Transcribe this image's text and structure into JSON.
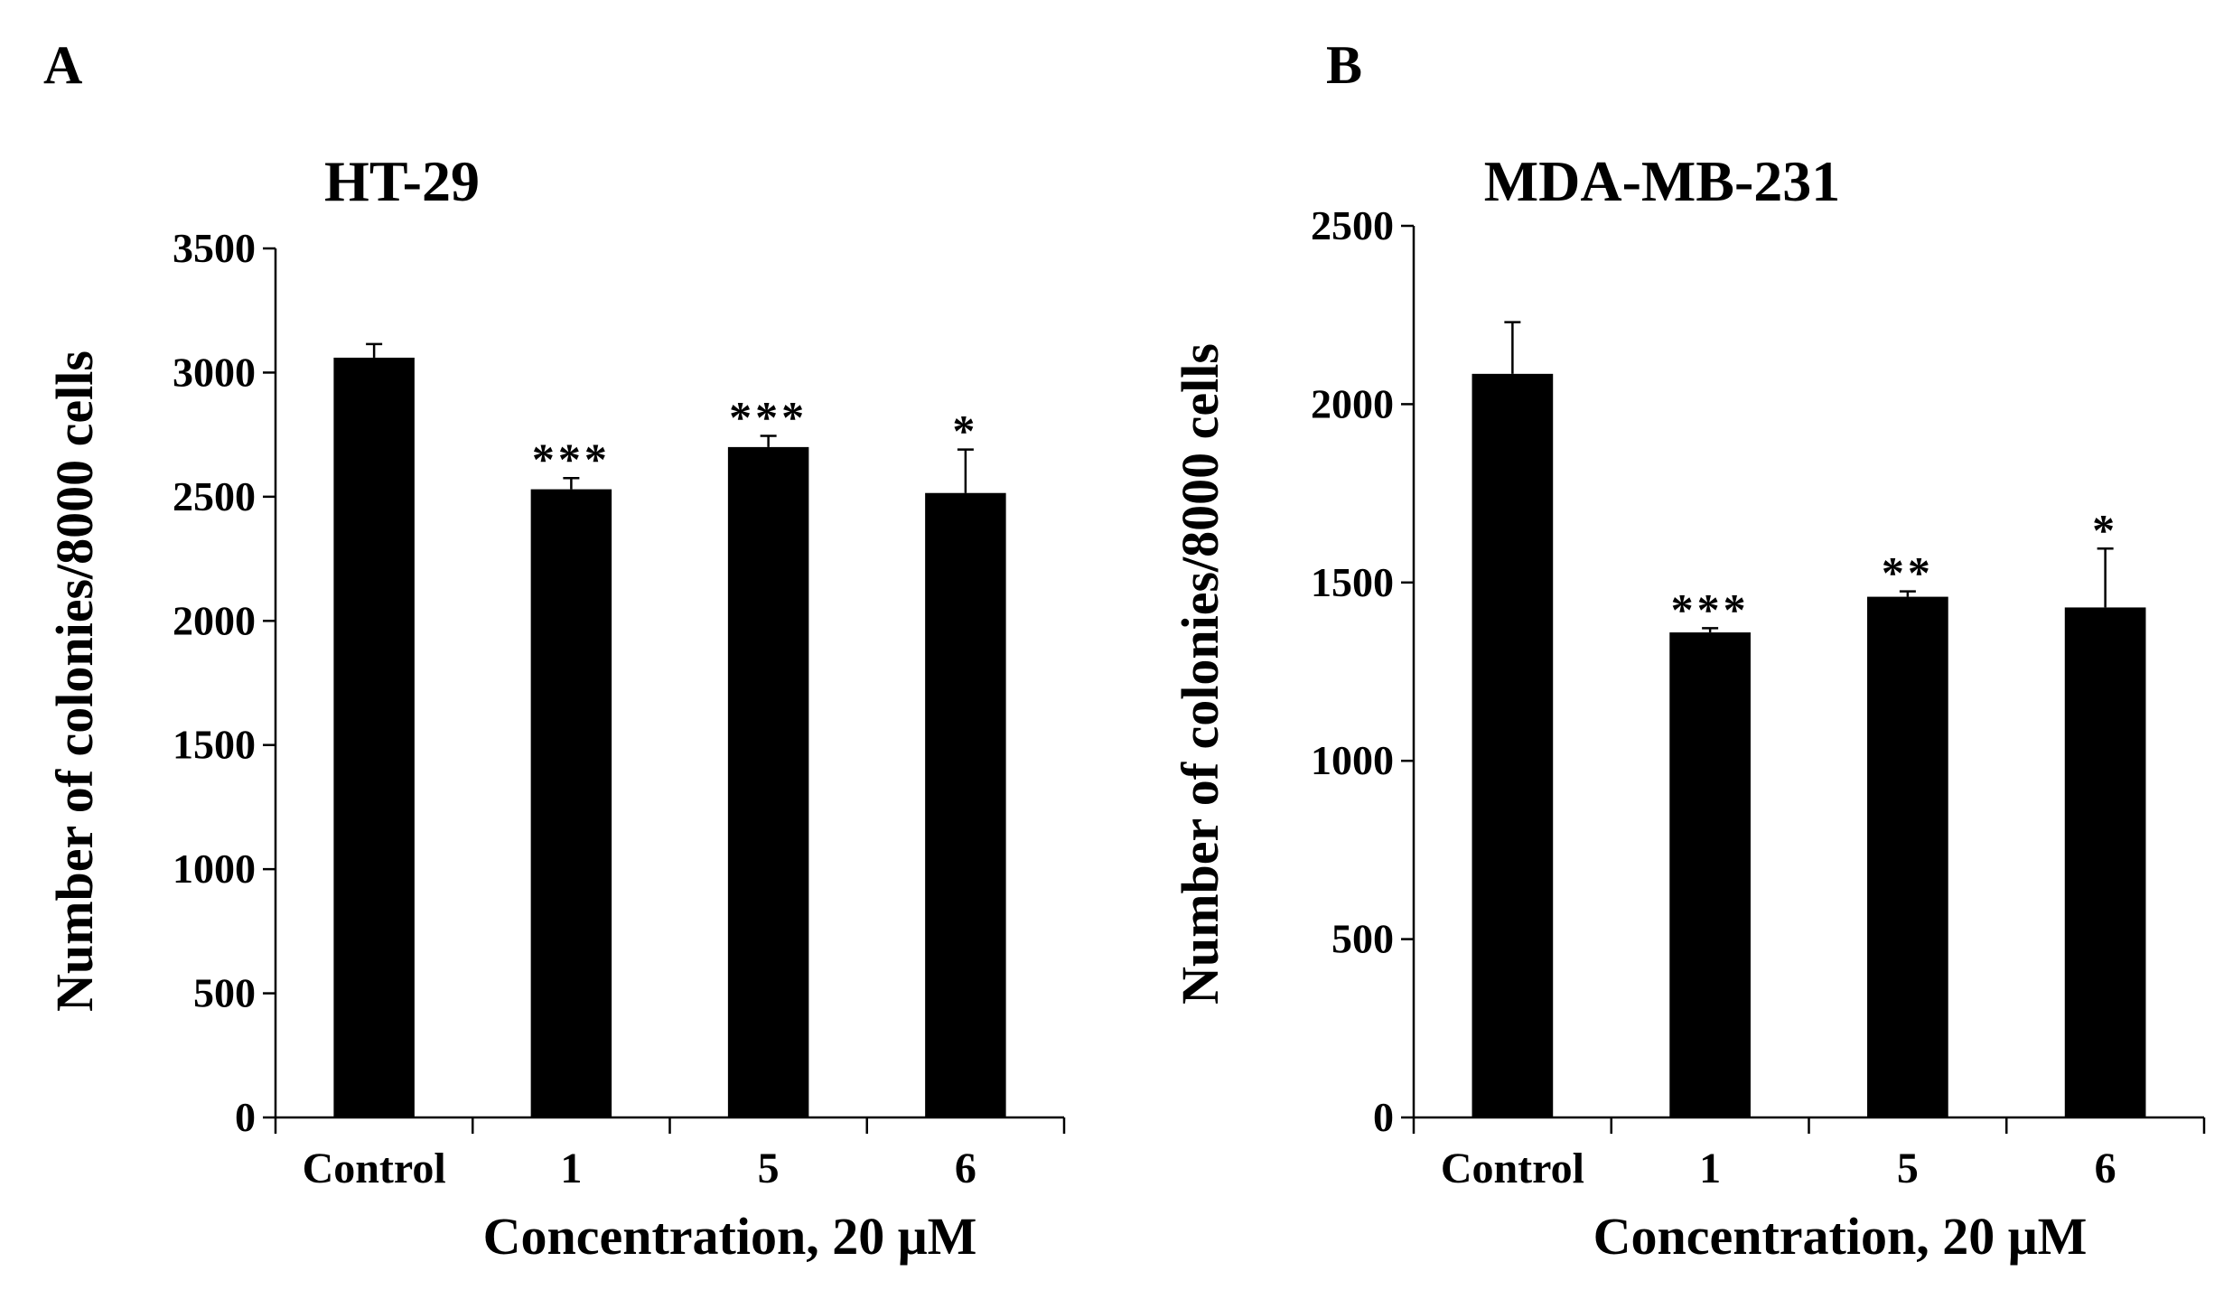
{
  "chart_data": [
    {
      "panel": "A",
      "type": "bar",
      "title": "HT-29",
      "categories": [
        "Control",
        "1",
        "5",
        "6"
      ],
      "values": [
        3060,
        2530,
        2700,
        2515
      ],
      "errors": [
        55,
        45,
        45,
        175
      ],
      "significance": [
        "",
        "***",
        "***",
        "*"
      ],
      "xlabel": "Concentration,  20 μM",
      "ylabel": "Number of colonies/8000 cells",
      "ylim": [
        0,
        3500
      ],
      "yticks": [
        0,
        500,
        1000,
        1500,
        2000,
        2500,
        3000,
        3500
      ],
      "grid": false
    },
    {
      "panel": "B",
      "type": "bar",
      "title": "MDA-MB-231",
      "categories": [
        "Control",
        "1",
        "5",
        "6"
      ],
      "values": [
        2085,
        1360,
        1460,
        1430
      ],
      "errors": [
        145,
        12,
        15,
        165
      ],
      "significance": [
        "",
        "***",
        "**",
        "*"
      ],
      "xlabel": "Concentration,  20 μM",
      "ylabel": "Number of colonies/8000 cells",
      "ylim": [
        0,
        2500
      ],
      "yticks": [
        0,
        500,
        1000,
        1500,
        2000,
        2500
      ],
      "grid": false
    }
  ]
}
